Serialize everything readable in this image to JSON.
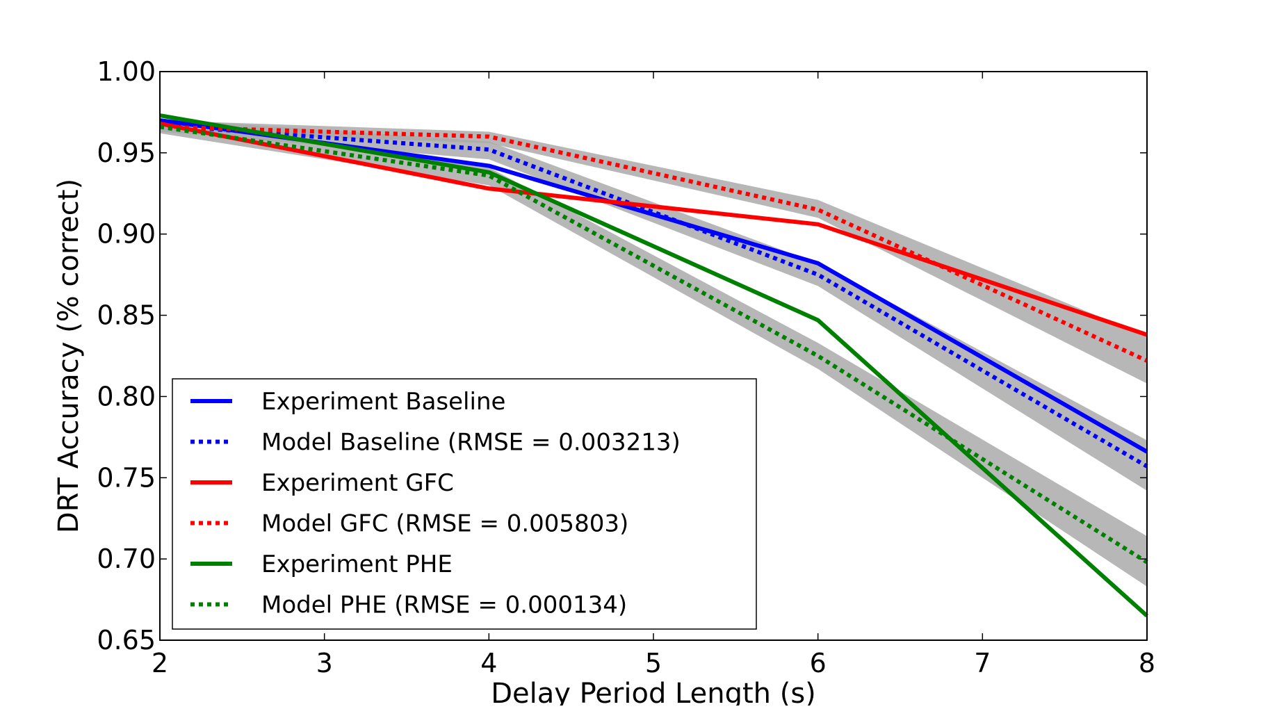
{
  "chart_data": {
    "type": "line",
    "title": "",
    "xlabel": "Delay Period Length (s)",
    "ylabel": "DRT Accuracy (% correct)",
    "xlim": [
      2,
      8
    ],
    "ylim": [
      0.65,
      1.0
    ],
    "xticks": [
      2,
      3,
      4,
      5,
      6,
      7,
      8
    ],
    "xtick_labels": [
      "2",
      "3",
      "4",
      "5",
      "6",
      "7",
      "8"
    ],
    "yticks": [
      0.65,
      0.7,
      0.75,
      0.8,
      0.85,
      0.9,
      0.95,
      1.0
    ],
    "ytick_labels": [
      "0.65",
      "0.70",
      "0.75",
      "0.80",
      "0.85",
      "0.90",
      "0.95",
      "1.00"
    ],
    "grid": false,
    "legend_position": "lower-left",
    "x": [
      2,
      4,
      6,
      8
    ],
    "bands": [
      {
        "series": "Model Baseline (RMSE = 0.003213)",
        "lower": [
          0.963,
          0.946,
          0.868,
          0.742
        ],
        "upper": [
          0.971,
          0.957,
          0.882,
          0.773
        ],
        "color": "#aaaaaa"
      },
      {
        "series": "Model GFC (RMSE = 0.005803)",
        "lower": [
          0.963,
          0.956,
          0.91,
          0.808
        ],
        "upper": [
          0.97,
          0.963,
          0.921,
          0.837
        ],
        "color": "#aaaaaa"
      },
      {
        "series": "Model PHE (RMSE = 0.000134)",
        "lower": [
          0.962,
          0.93,
          0.817,
          0.683
        ],
        "upper": [
          0.97,
          0.941,
          0.833,
          0.714
        ],
        "color": "#aaaaaa"
      }
    ],
    "series": [
      {
        "name": "Experiment Baseline",
        "values": [
          0.97,
          0.942,
          0.882,
          0.766
        ],
        "color": "#0000ff",
        "style": "solid"
      },
      {
        "name": "Model Baseline (RMSE = 0.003213)",
        "values": [
          0.967,
          0.952,
          0.875,
          0.757
        ],
        "color": "#0000ff",
        "style": "dotted"
      },
      {
        "name": "Experiment GFC",
        "values": [
          0.968,
          0.928,
          0.906,
          0.838
        ],
        "color": "#ff0000",
        "style": "solid"
      },
      {
        "name": "Model GFC (RMSE = 0.005803)",
        "values": [
          0.966,
          0.96,
          0.915,
          0.822
        ],
        "color": "#ff0000",
        "style": "dotted"
      },
      {
        "name": "Experiment PHE",
        "values": [
          0.973,
          0.938,
          0.847,
          0.665
        ],
        "color": "#008000",
        "style": "solid"
      },
      {
        "name": "Model PHE (RMSE = 0.000134)",
        "values": [
          0.966,
          0.936,
          0.825,
          0.698
        ],
        "color": "#008000",
        "style": "dotted"
      }
    ]
  }
}
